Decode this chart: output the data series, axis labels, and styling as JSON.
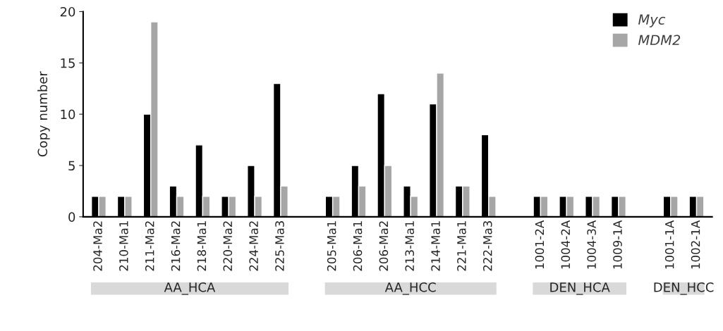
{
  "chart_data": {
    "type": "bar",
    "ylabel": "Copy number",
    "categories": [
      "204-Ma2",
      "210-Ma1",
      "211-Ma2",
      "216-Ma2",
      "218-Ma1",
      "220-Ma2",
      "224-Ma2",
      "225-Ma3",
      null,
      "205-Ma1",
      "206-Ma1",
      "206-Ma2",
      "213-Ma1",
      "214-Ma1",
      "221-Ma1",
      "222-Ma3",
      null,
      "1001-2A",
      "1004-2A",
      "1004-3A",
      "1009-1A",
      null,
      "1001-1A",
      "1002-1A"
    ],
    "series": [
      {
        "name": "Myc",
        "color": "#000000",
        "values": [
          2,
          2,
          10,
          3,
          7,
          2,
          5,
          13,
          null,
          2,
          5,
          12,
          3,
          11,
          3,
          8,
          null,
          2,
          2,
          2,
          2,
          null,
          2,
          2
        ]
      },
      {
        "name": "MDM2",
        "color": "#a6a6a6",
        "values": [
          2,
          2,
          19,
          2,
          2,
          2,
          2,
          3,
          null,
          2,
          3,
          5,
          2,
          14,
          3,
          2,
          null,
          2,
          2,
          2,
          2,
          null,
          2,
          2
        ]
      }
    ],
    "ylim": [
      0,
      20
    ],
    "yticks": [
      0,
      5,
      10,
      15,
      20
    ],
    "grid": false,
    "legend": "top right",
    "annotations": [
      "AA_HCA",
      "AA_HCC",
      "DEN_HCA",
      "DEN_HCC"
    ]
  }
}
